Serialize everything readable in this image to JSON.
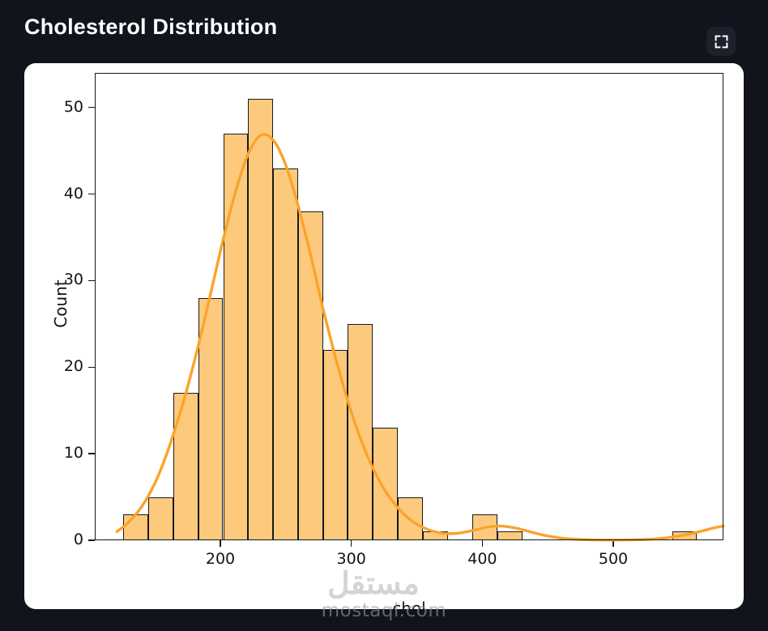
{
  "header": {
    "title": "Cholesterol Distribution"
  },
  "watermark": {
    "arabic": "مستقل",
    "domain": "mostaql.com"
  },
  "colors": {
    "background": "#11141d",
    "card": "#ffffff",
    "bar_fill": "#fdca7d",
    "bar_edge": "#17191e",
    "kde_line": "#fba32a",
    "axis_text": "#141414"
  },
  "chart_data": {
    "type": "bar",
    "subtype": "histogram_with_kde",
    "title": "Cholesterol Distribution",
    "xlabel": "chol",
    "ylabel": "Count",
    "x_ticks": [
      200,
      300,
      400,
      500
    ],
    "y_ticks": [
      0,
      10,
      20,
      30,
      40,
      50
    ],
    "xlim": [
      104.1,
      584.1
    ],
    "ylim": [
      0,
      54
    ],
    "grid": false,
    "legend": "none",
    "bins": {
      "start": 126,
      "width": 19.04,
      "count": 23,
      "end": 564
    },
    "bin_counts": [
      3,
      5,
      17,
      28,
      47,
      51,
      43,
      38,
      22,
      25,
      13,
      5,
      1,
      0,
      3,
      1,
      0,
      0,
      0,
      0,
      0,
      0,
      1
    ],
    "total_samples": 303,
    "kde_points": [
      [
        121,
        1.0
      ],
      [
        130,
        2.1
      ],
      [
        140,
        3.9
      ],
      [
        150,
        6.6
      ],
      [
        160,
        10.4
      ],
      [
        171,
        15.6
      ],
      [
        182,
        21.8
      ],
      [
        193,
        28.8
      ],
      [
        203,
        35.3
      ],
      [
        213,
        41.0
      ],
      [
        222,
        44.9
      ],
      [
        231,
        46.8
      ],
      [
        240,
        46.3
      ],
      [
        249,
        43.7
      ],
      [
        258,
        39.4
      ],
      [
        268,
        33.5
      ],
      [
        278,
        27.0
      ],
      [
        289,
        20.5
      ],
      [
        300,
        14.8
      ],
      [
        311,
        10.2
      ],
      [
        322,
        6.7
      ],
      [
        333,
        4.2
      ],
      [
        344,
        2.5
      ],
      [
        356,
        1.4
      ],
      [
        368,
        0.85
      ],
      [
        380,
        0.8
      ],
      [
        392,
        1.1
      ],
      [
        403,
        1.5
      ],
      [
        413,
        1.65
      ],
      [
        424,
        1.45
      ],
      [
        436,
        1.0
      ],
      [
        448,
        0.55
      ],
      [
        460,
        0.25
      ],
      [
        474,
        0.1
      ],
      [
        492,
        0.03
      ],
      [
        510,
        0.04
      ],
      [
        528,
        0.12
      ],
      [
        542,
        0.3
      ],
      [
        554,
        0.6
      ],
      [
        566,
        1.0
      ],
      [
        576,
        1.4
      ],
      [
        584,
        1.65
      ]
    ]
  }
}
